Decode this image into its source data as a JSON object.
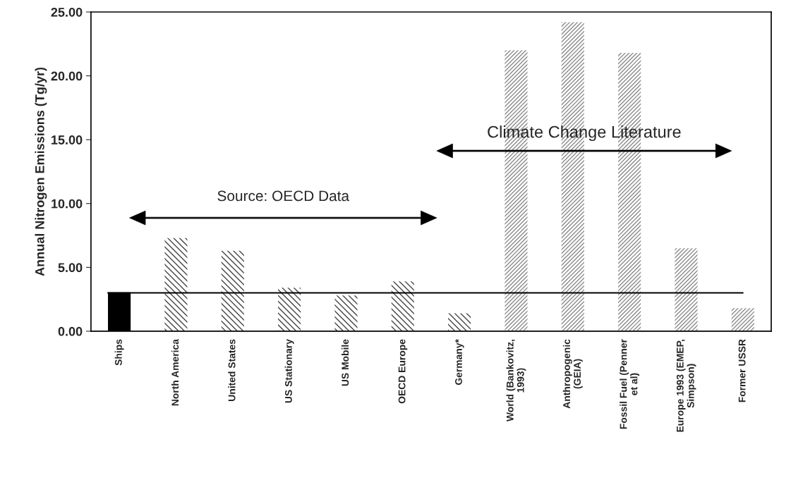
{
  "chart_data": {
    "type": "bar",
    "ylabel": "Annual Nitrogen Emissions (Tg/yr)",
    "categories": [
      "Ships",
      "North America",
      "United States",
      "US Stationary",
      "US Mobile",
      "OECD Europe",
      "Germany*",
      "World (Bankovitz,\n1993)",
      "Anthropogenic\n(GEIA)",
      "Fossil Fuel (Penner\net al)",
      "Europe 1993 (EMEP,\nSimpson)",
      "Former USSR"
    ],
    "values": [
      3.05,
      7.3,
      6.3,
      3.4,
      2.8,
      3.9,
      1.4,
      22.0,
      24.2,
      21.8,
      6.5,
      1.8
    ],
    "colors": [
      "#000000",
      "#444444",
      "#444444",
      "#444444",
      "#444444",
      "#444444",
      "#444444",
      "#8a8a8a",
      "#8a8a8a",
      "#8a8a8a",
      "#8a8a8a",
      "#8a8a8a"
    ],
    "ylim": [
      0,
      25
    ],
    "yticks": [
      {
        "value": 0,
        "label": "0.00"
      },
      {
        "value": 5,
        "label": "5.00"
      },
      {
        "value": 10,
        "label": "10.00"
      },
      {
        "value": 15,
        "label": "15.00"
      },
      {
        "value": 20,
        "label": "20.00"
      },
      {
        "value": 25,
        "label": "25.00"
      }
    ],
    "ref_lines": [
      {
        "axis": "y",
        "value": 3.0,
        "color": "#000000"
      }
    ],
    "annotations": [
      "Source: OECD Data",
      "Climate Change Literature"
    ],
    "grid": false
  }
}
